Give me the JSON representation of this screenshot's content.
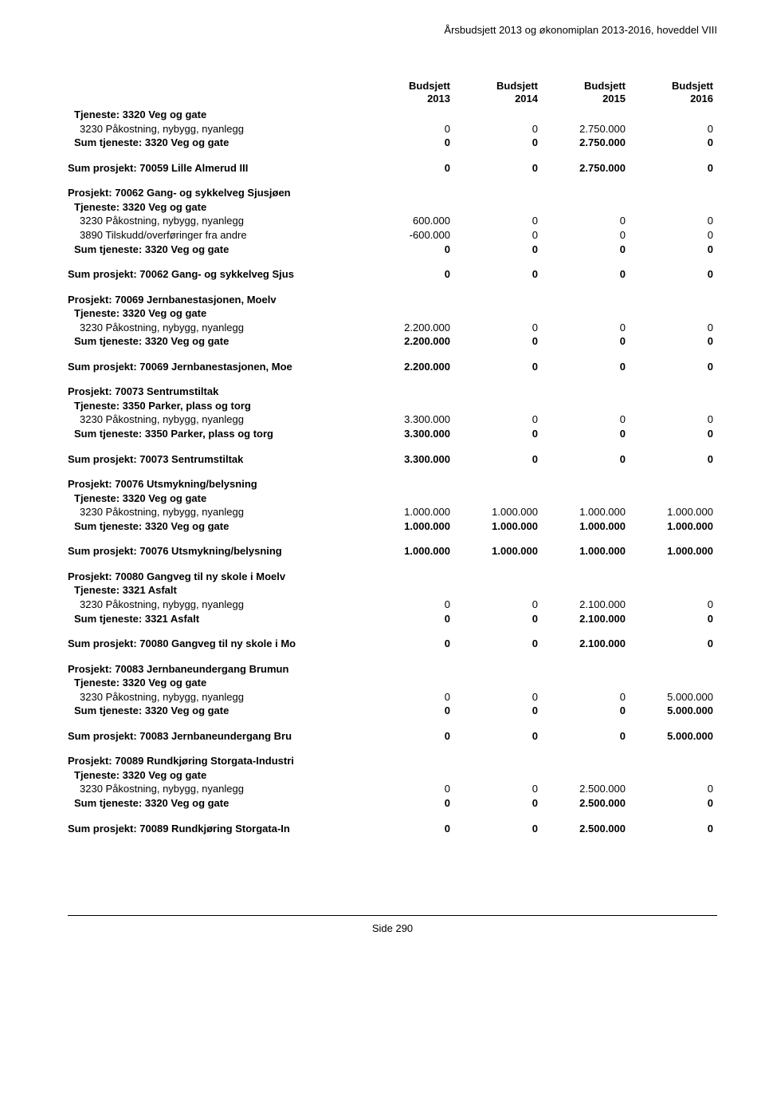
{
  "header": "Årsbudsjett 2013 og økonomiplan 2013-2016, hoveddel VIII",
  "footer": "Side 290",
  "columns": [
    {
      "l1": "Budsjett",
      "l2": "2013"
    },
    {
      "l1": "Budsjett",
      "l2": "2014"
    },
    {
      "l1": "Budsjett",
      "l2": "2015"
    },
    {
      "l1": "Budsjett",
      "l2": "2016"
    }
  ],
  "b": [
    {
      "pre": [
        {
          "label": "Tjeneste: 3320 Veg og gate",
          "bold": true,
          "indent": 1
        },
        {
          "label": "3230 Påkostning, nybygg, nyanlegg",
          "vals": [
            "0",
            "0",
            "2.750.000",
            "0"
          ],
          "indent": 2
        },
        {
          "label": "Sum tjeneste: 3320 Veg og gate",
          "vals": [
            "0",
            "0",
            "2.750.000",
            "0"
          ],
          "bold": true,
          "indent": 1
        }
      ],
      "sum": {
        "label": "Sum prosjekt: 70059 Lille Almerud III",
        "vals": [
          "0",
          "0",
          "2.750.000",
          "0"
        ]
      }
    },
    {
      "project": "Prosjekt: 70062 Gang- og sykkelveg Sjusjøen",
      "lines": [
        {
          "label": "Tjeneste: 3320 Veg og gate",
          "bold": true,
          "indent": 1
        },
        {
          "label": "3230 Påkostning, nybygg, nyanlegg",
          "vals": [
            "600.000",
            "0",
            "0",
            "0"
          ],
          "indent": 2
        },
        {
          "label": "3890 Tilskudd/overføringer fra andre",
          "vals": [
            "-600.000",
            "0",
            "0",
            "0"
          ],
          "indent": 2
        },
        {
          "label": "Sum tjeneste: 3320 Veg og gate",
          "vals": [
            "0",
            "0",
            "0",
            "0"
          ],
          "bold": true,
          "indent": 1
        }
      ],
      "sum": {
        "label": "Sum prosjekt: 70062 Gang- og sykkelveg Sjus",
        "vals": [
          "0",
          "0",
          "0",
          "0"
        ]
      }
    },
    {
      "project": "Prosjekt: 70069 Jernbanestasjonen, Moelv",
      "lines": [
        {
          "label": "Tjeneste: 3320 Veg og gate",
          "bold": true,
          "indent": 1
        },
        {
          "label": "3230 Påkostning, nybygg, nyanlegg",
          "vals": [
            "2.200.000",
            "0",
            "0",
            "0"
          ],
          "indent": 2
        },
        {
          "label": "Sum tjeneste: 3320 Veg og gate",
          "vals": [
            "2.200.000",
            "0",
            "0",
            "0"
          ],
          "bold": true,
          "indent": 1
        }
      ],
      "sum": {
        "label": "Sum prosjekt: 70069 Jernbanestasjonen, Moe",
        "vals": [
          "2.200.000",
          "0",
          "0",
          "0"
        ]
      }
    },
    {
      "project": "Prosjekt: 70073 Sentrumstiltak",
      "lines": [
        {
          "label": "Tjeneste: 3350 Parker, plass og torg",
          "bold": true,
          "indent": 1
        },
        {
          "label": "3230 Påkostning, nybygg, nyanlegg",
          "vals": [
            "3.300.000",
            "0",
            "0",
            "0"
          ],
          "indent": 2
        },
        {
          "label": "Sum tjeneste: 3350 Parker, plass og torg",
          "vals": [
            "3.300.000",
            "0",
            "0",
            "0"
          ],
          "bold": true,
          "indent": 1
        }
      ],
      "sum": {
        "label": "Sum prosjekt: 70073 Sentrumstiltak",
        "vals": [
          "3.300.000",
          "0",
          "0",
          "0"
        ]
      }
    },
    {
      "project": "Prosjekt: 70076 Utsmykning/belysning",
      "lines": [
        {
          "label": "Tjeneste: 3320 Veg og gate",
          "bold": true,
          "indent": 1
        },
        {
          "label": "3230 Påkostning, nybygg, nyanlegg",
          "vals": [
            "1.000.000",
            "1.000.000",
            "1.000.000",
            "1.000.000"
          ],
          "indent": 2
        },
        {
          "label": "Sum tjeneste: 3320 Veg og gate",
          "vals": [
            "1.000.000",
            "1.000.000",
            "1.000.000",
            "1.000.000"
          ],
          "bold": true,
          "indent": 1
        }
      ],
      "sum": {
        "label": "Sum prosjekt: 70076 Utsmykning/belysning",
        "vals": [
          "1.000.000",
          "1.000.000",
          "1.000.000",
          "1.000.000"
        ]
      }
    },
    {
      "project": "Prosjekt: 70080 Gangveg til ny skole i Moelv",
      "lines": [
        {
          "label": "Tjeneste: 3321 Asfalt",
          "bold": true,
          "indent": 1
        },
        {
          "label": "3230 Påkostning, nybygg, nyanlegg",
          "vals": [
            "0",
            "0",
            "2.100.000",
            "0"
          ],
          "indent": 2
        },
        {
          "label": "Sum tjeneste: 3321 Asfalt",
          "vals": [
            "0",
            "0",
            "2.100.000",
            "0"
          ],
          "bold": true,
          "indent": 1
        }
      ],
      "sum": {
        "label": "Sum prosjekt: 70080 Gangveg til ny skole i Mo",
        "vals": [
          "0",
          "0",
          "2.100.000",
          "0"
        ]
      }
    },
    {
      "project": "Prosjekt: 70083 Jernbaneundergang Brumun",
      "lines": [
        {
          "label": "Tjeneste: 3320 Veg og gate",
          "bold": true,
          "indent": 1
        },
        {
          "label": "3230 Påkostning, nybygg, nyanlegg",
          "vals": [
            "0",
            "0",
            "0",
            "5.000.000"
          ],
          "indent": 2
        },
        {
          "label": "Sum tjeneste: 3320 Veg og gate",
          "vals": [
            "0",
            "0",
            "0",
            "5.000.000"
          ],
          "bold": true,
          "indent": 1
        }
      ],
      "sum": {
        "label": "Sum prosjekt: 70083 Jernbaneundergang Bru",
        "vals": [
          "0",
          "0",
          "0",
          "5.000.000"
        ]
      }
    },
    {
      "project": "Prosjekt: 70089 Rundkjøring Storgata-Industri",
      "lines": [
        {
          "label": "Tjeneste: 3320 Veg og gate",
          "bold": true,
          "indent": 1
        },
        {
          "label": "3230 Påkostning, nybygg, nyanlegg",
          "vals": [
            "0",
            "0",
            "2.500.000",
            "0"
          ],
          "indent": 2
        },
        {
          "label": "Sum tjeneste: 3320 Veg og gate",
          "vals": [
            "0",
            "0",
            "2.500.000",
            "0"
          ],
          "bold": true,
          "indent": 1
        }
      ],
      "sum": {
        "label": "Sum prosjekt: 70089 Rundkjøring Storgata-In",
        "vals": [
          "0",
          "0",
          "2.500.000",
          "0"
        ]
      }
    }
  ]
}
